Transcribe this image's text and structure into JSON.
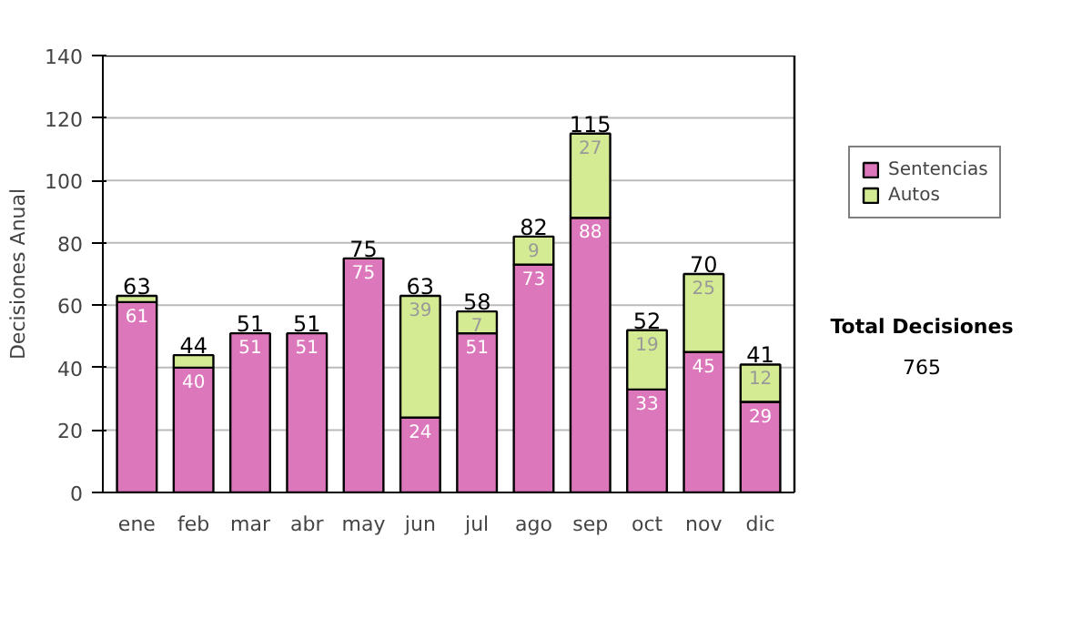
{
  "chart_data": {
    "type": "bar",
    "stacked": true,
    "ylabel": "Decisiones Anual",
    "categories": [
      "ene",
      "feb",
      "mar",
      "abr",
      "may",
      "jun",
      "jul",
      "ago",
      "sep",
      "oct",
      "nov",
      "dic"
    ],
    "series": [
      {
        "name": "Sentencias",
        "color": "#dd77bb",
        "values": [
          61,
          40,
          51,
          51,
          75,
          24,
          51,
          73,
          88,
          33,
          45,
          29
        ],
        "value_labels": [
          "61",
          "40",
          "51",
          "51",
          "75",
          "24",
          "51",
          "73",
          "88",
          "33",
          "45",
          "29"
        ]
      },
      {
        "name": "Autos",
        "color": "#d4eb94",
        "values": [
          2,
          4,
          0,
          0,
          0,
          39,
          7,
          9,
          27,
          19,
          25,
          12
        ],
        "value_labels": [
          null,
          null,
          null,
          null,
          null,
          "39",
          "7",
          "9",
          "27",
          "19",
          "25",
          "12"
        ]
      }
    ],
    "totals": [
      "63",
      "44",
      "51",
      "51",
      "75",
      "63",
      "58",
      "82",
      "115",
      "52",
      "70",
      "41"
    ],
    "ylim": [
      0,
      140
    ],
    "yticks": [
      0,
      20,
      40,
      60,
      80,
      100,
      120,
      140
    ],
    "grid": "y",
    "legend": "right",
    "annotations": [
      "Total Decisiones",
      "765"
    ]
  }
}
